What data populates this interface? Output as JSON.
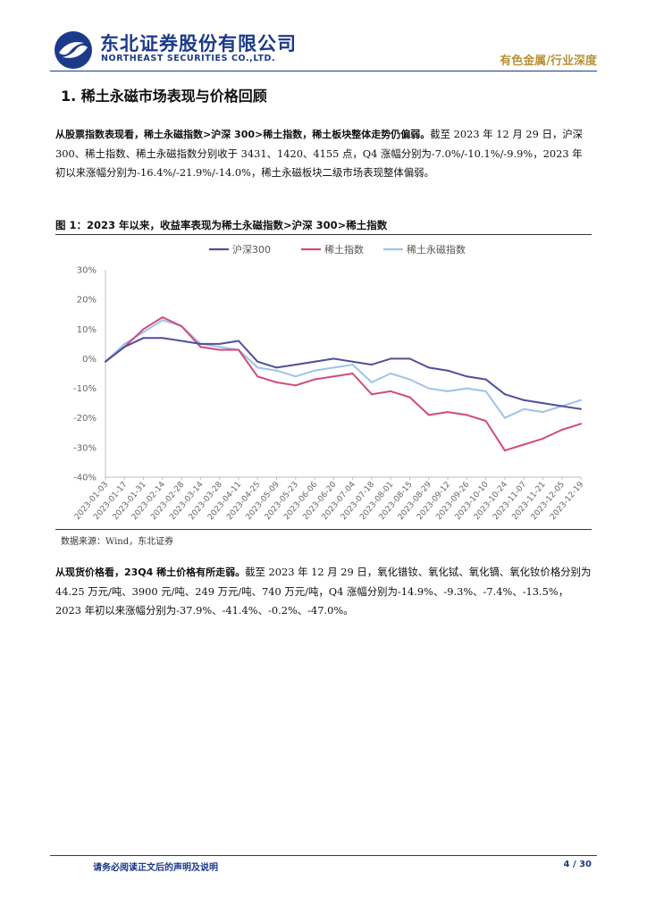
{
  "header": {
    "company_cn": "东北证券股份有限公司",
    "company_en": "NORTHEAST SECURITIES CO.,LTD.",
    "report_type": "有色金属/行业深度",
    "brand_color": "#1c3a8a",
    "accent_color": "#b8923a"
  },
  "section": {
    "title": "1. 稀土永磁市场表现与价格回顾"
  },
  "para1": {
    "bold": "从股票指数表现看，稀土永磁指数>沪深 300>稀土指数，稀土板块整体走势仍偏弱。",
    "text": "截至 2023 年 12 月 29 日，沪深 300、稀土指数、稀土永磁指数分别收于 3431、1420、4155 点，Q4 涨幅分别为-7.0%/-10.1%/-9.9%，2023 年初以来涨幅分别为-16.4%/-21.9%/-14.0%，稀土永磁板块二级市场表现整体偏弱。"
  },
  "figure": {
    "title": "图 1：2023 年以来，收益率表现为稀土永磁指数>沪深 300>稀土指数",
    "source": "数据来源：Wind，东北证券"
  },
  "chart_data": {
    "type": "line",
    "title": "",
    "xlabel": "",
    "ylabel": "",
    "ylim": [
      -40,
      30
    ],
    "yticks": [
      30,
      20,
      10,
      0,
      -10,
      -20,
      -30,
      -40
    ],
    "ytick_labels": [
      "30%",
      "20%",
      "10%",
      "0%",
      "-10%",
      "-20%",
      "-30%",
      "-40%"
    ],
    "legend_position": "top",
    "categories": [
      "2023-01-03",
      "2023-01-17",
      "2023-01-31",
      "2023-02-14",
      "2023-02-28",
      "2023-03-14",
      "2023-03-28",
      "2023-04-11",
      "2023-04-25",
      "2023-05-09",
      "2023-05-23",
      "2023-06-06",
      "2023-06-20",
      "2023-07-04",
      "2023-07-18",
      "2023-08-01",
      "2023-08-15",
      "2023-08-29",
      "2023-09-12",
      "2023-09-26",
      "2023-10-10",
      "2023-10-24",
      "2023-11-07",
      "2023-11-21",
      "2023-12-05",
      "2023-12-19"
    ],
    "series": [
      {
        "name": "沪深300",
        "color": "#4f4f9b",
        "values": [
          -1,
          4,
          7,
          7,
          6,
          5,
          5,
          6,
          -1,
          -3,
          -2,
          -1,
          0,
          -1,
          -2,
          0,
          0,
          -3,
          -4,
          -6,
          -7,
          -12,
          -14,
          -15,
          -16,
          -17
        ]
      },
      {
        "name": "稀土指数",
        "color": "#d14a7c",
        "values": [
          -1,
          4,
          10,
          14,
          11,
          4,
          3,
          3,
          -6,
          -8,
          -9,
          -7,
          -6,
          -5,
          -12,
          -11,
          -13,
          -19,
          -18,
          -19,
          -21,
          -31,
          -29,
          -27,
          -24,
          -22
        ]
      },
      {
        "name": "稀土永磁指数",
        "color": "#9dc3ea",
        "values": [
          -1,
          5,
          9,
          13,
          11,
          5,
          4,
          3,
          -3,
          -4,
          -6,
          -4,
          -3,
          -2,
          -8,
          -5,
          -7,
          -10,
          -11,
          -10,
          -11,
          -20,
          -17,
          -18,
          -16,
          -14
        ]
      }
    ]
  },
  "para2": {
    "bold": "从现货价格看，23Q4 稀土价格有所走弱。",
    "text": "截至 2023 年 12 月 29 日，氧化镨钕、氧化铽、氧化镝、氧化钕价格分别为 44.25 万元/吨、3900 元/吨、249 万元/吨、740 万元/吨，Q4 涨幅分别为-14.9%、-9.3%、-7.4%、-13.5%，2023 年初以来涨幅分别为-37.9%、-41.4%、-0.2%、-47.0%。"
  },
  "footer": {
    "note": "请务必阅读正文后的声明及说明",
    "page": "4 / 30"
  }
}
